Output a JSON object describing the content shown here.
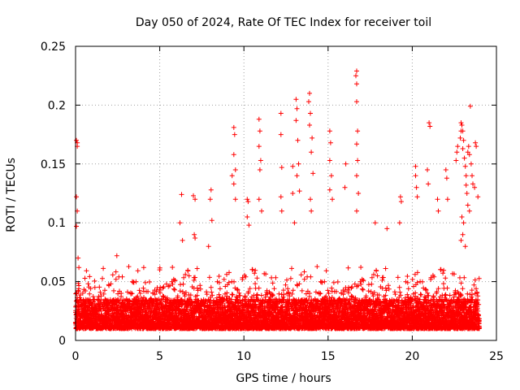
{
  "chart_data": {
    "type": "scatter",
    "title": "Day 050 of 2024, Rate Of TEC Index for receiver toil",
    "xlabel": "GPS time / hours",
    "ylabel": "ROTI / TECUs",
    "xlim": [
      0,
      25
    ],
    "ylim": [
      0,
      0.25
    ],
    "x_ticks": [
      0,
      5,
      10,
      15,
      20,
      25
    ],
    "x_tick_labels": [
      "0",
      "5",
      "10",
      "15",
      "20",
      "25"
    ],
    "y_ticks": [
      0,
      0.05,
      0.1,
      0.15,
      0.2,
      0.25
    ],
    "y_tick_labels": [
      "0",
      "0.05",
      "0.1",
      "0.15",
      "0.2",
      "0.25"
    ],
    "grid": true,
    "marker": "+",
    "color": "#ff0000",
    "series": [
      {
        "name": "ROTI",
        "x_range_hours": [
          0,
          24
        ],
        "sample_interval_hours": 0.01,
        "typical_baseline": [
          0.01,
          0.035
        ],
        "points": [
          [
            0.05,
            0.17
          ],
          [
            0.1,
            0.168
          ],
          [
            0.1,
            0.165
          ],
          [
            0.05,
            0.122
          ],
          [
            0.1,
            0.11
          ],
          [
            0.05,
            0.097
          ],
          [
            0.15,
            0.07
          ],
          [
            0.2,
            0.062
          ],
          [
            2.45,
            0.072
          ],
          [
            4.05,
            0.062
          ],
          [
            5.0,
            0.06
          ],
          [
            6.3,
            0.124
          ],
          [
            6.2,
            0.1
          ],
          [
            6.35,
            0.085
          ],
          [
            7.0,
            0.123
          ],
          [
            7.1,
            0.12
          ],
          [
            7.05,
            0.09
          ],
          [
            7.1,
            0.087
          ],
          [
            8.05,
            0.128
          ],
          [
            8.0,
            0.12
          ],
          [
            8.1,
            0.102
          ],
          [
            7.9,
            0.08
          ],
          [
            9.4,
            0.181
          ],
          [
            9.45,
            0.175
          ],
          [
            9.4,
            0.158
          ],
          [
            9.5,
            0.145
          ],
          [
            9.3,
            0.14
          ],
          [
            9.4,
            0.133
          ],
          [
            9.5,
            0.12
          ],
          [
            10.2,
            0.12
          ],
          [
            10.25,
            0.118
          ],
          [
            10.2,
            0.105
          ],
          [
            10.3,
            0.098
          ],
          [
            10.9,
            0.188
          ],
          [
            10.95,
            0.178
          ],
          [
            10.9,
            0.165
          ],
          [
            11.0,
            0.153
          ],
          [
            10.95,
            0.145
          ],
          [
            10.9,
            0.12
          ],
          [
            11.05,
            0.11
          ],
          [
            12.2,
            0.193
          ],
          [
            12.2,
            0.175
          ],
          [
            12.25,
            0.147
          ],
          [
            12.2,
            0.122
          ],
          [
            12.25,
            0.11
          ],
          [
            12.9,
            0.148
          ],
          [
            12.9,
            0.125
          ],
          [
            13.0,
            0.1
          ],
          [
            13.1,
            0.205
          ],
          [
            13.15,
            0.197
          ],
          [
            13.1,
            0.187
          ],
          [
            13.2,
            0.17
          ],
          [
            13.25,
            0.15
          ],
          [
            13.15,
            0.14
          ],
          [
            13.3,
            0.127
          ],
          [
            13.9,
            0.21
          ],
          [
            13.85,
            0.203
          ],
          [
            13.95,
            0.193
          ],
          [
            13.9,
            0.183
          ],
          [
            14.05,
            0.172
          ],
          [
            14.0,
            0.16
          ],
          [
            14.1,
            0.142
          ],
          [
            13.95,
            0.12
          ],
          [
            14.0,
            0.11
          ],
          [
            15.1,
            0.178
          ],
          [
            15.15,
            0.168
          ],
          [
            15.1,
            0.153
          ],
          [
            15.2,
            0.14
          ],
          [
            15.1,
            0.128
          ],
          [
            15.25,
            0.12
          ],
          [
            16.05,
            0.15
          ],
          [
            16.0,
            0.13
          ],
          [
            16.7,
            0.229
          ],
          [
            16.65,
            0.225
          ],
          [
            16.7,
            0.218
          ],
          [
            16.7,
            0.203
          ],
          [
            16.75,
            0.178
          ],
          [
            16.7,
            0.167
          ],
          [
            16.75,
            0.153
          ],
          [
            16.7,
            0.14
          ],
          [
            16.8,
            0.125
          ],
          [
            16.7,
            0.11
          ],
          [
            17.8,
            0.1
          ],
          [
            18.5,
            0.095
          ],
          [
            19.3,
            0.122
          ],
          [
            19.35,
            0.118
          ],
          [
            19.25,
            0.1
          ],
          [
            20.2,
            0.148
          ],
          [
            20.2,
            0.14
          ],
          [
            20.25,
            0.13
          ],
          [
            20.3,
            0.122
          ],
          [
            20.9,
            0.145
          ],
          [
            20.95,
            0.133
          ],
          [
            21.0,
            0.185
          ],
          [
            21.05,
            0.182
          ],
          [
            21.5,
            0.12
          ],
          [
            21.55,
            0.11
          ],
          [
            22.0,
            0.145
          ],
          [
            22.05,
            0.138
          ],
          [
            22.1,
            0.12
          ],
          [
            22.6,
            0.153
          ],
          [
            22.65,
            0.16
          ],
          [
            22.7,
            0.165
          ],
          [
            22.85,
            0.172
          ],
          [
            22.9,
            0.178
          ],
          [
            22.9,
            0.185
          ],
          [
            22.95,
            0.183
          ],
          [
            23.0,
            0.178
          ],
          [
            23.05,
            0.17
          ],
          [
            23.0,
            0.163
          ],
          [
            23.1,
            0.155
          ],
          [
            23.15,
            0.148
          ],
          [
            23.2,
            0.14
          ],
          [
            23.2,
            0.132
          ],
          [
            23.25,
            0.125
          ],
          [
            23.3,
            0.16
          ],
          [
            23.35,
            0.165
          ],
          [
            23.4,
            0.158
          ],
          [
            23.45,
            0.199
          ],
          [
            23.5,
            0.15
          ],
          [
            23.55,
            0.14
          ],
          [
            23.6,
            0.133
          ],
          [
            23.7,
            0.13
          ],
          [
            23.75,
            0.168
          ],
          [
            23.8,
            0.165
          ],
          [
            23.9,
            0.122
          ],
          [
            22.95,
            0.105
          ],
          [
            23.05,
            0.1
          ],
          [
            23.0,
            0.09
          ],
          [
            22.9,
            0.085
          ],
          [
            23.15,
            0.08
          ],
          [
            23.3,
            0.115
          ],
          [
            23.4,
            0.11
          ]
        ]
      }
    ]
  }
}
